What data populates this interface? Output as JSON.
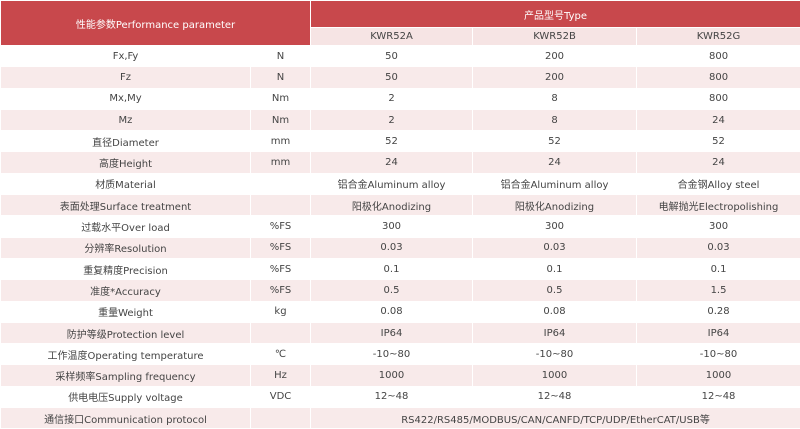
{
  "header": {
    "parameter": "性能参数Performance parameter",
    "type": "产品型号Type",
    "models": [
      "KWR52A",
      "KWR52B",
      "KWR52G"
    ]
  },
  "table": {
    "rows": [
      {
        "label": "Fx,Fy",
        "unit": "N",
        "values": [
          "50",
          "200",
          "800"
        ]
      },
      {
        "label": "Fz",
        "unit": "N",
        "values": [
          "50",
          "200",
          "800"
        ]
      },
      {
        "label": "Mx,My",
        "unit": "Nm",
        "values": [
          "2",
          "8",
          "800"
        ]
      },
      {
        "label": "Mz",
        "unit": "Nm",
        "values": [
          "2",
          "8",
          "24"
        ]
      },
      {
        "label": "直径Diameter",
        "unit": "mm",
        "values": [
          "52",
          "52",
          "52"
        ]
      },
      {
        "label": "高度Height",
        "unit": "mm",
        "values": [
          "24",
          "24",
          "24"
        ]
      },
      {
        "label": "材质Material",
        "values": [
          "铝合金Aluminum alloy",
          "铝合金Aluminum alloy",
          "合金钢Alloy steel"
        ]
      },
      {
        "label": "表面处理Surface treatment",
        "values": [
          "阳极化Anodizing",
          "阳极化Anodizing",
          "电解抛光Electropolishing"
        ]
      },
      {
        "label": "过载水平Over load",
        "unit": "%FS",
        "values": [
          "300",
          "300",
          "300"
        ]
      },
      {
        "label": "分辨率Resolution",
        "unit": "%FS",
        "values": [
          "0.03",
          "0.03",
          "0.03"
        ]
      },
      {
        "label": "重复精度Precision",
        "unit": "%FS",
        "values": [
          "0.1",
          "0.1",
          "0.1"
        ]
      },
      {
        "label": "准度*Accuracy",
        "unit": "%FS",
        "values": [
          "0.5",
          "0.5",
          "1.5"
        ]
      },
      {
        "label": "重量Weight",
        "unit": "kg",
        "values": [
          "0.08",
          "0.08",
          "0.28"
        ]
      },
      {
        "label": "防护等级Protection level",
        "values": [
          "IP64",
          "IP64",
          "IP64"
        ]
      },
      {
        "label": "工作温度Operating temperature",
        "unit": "℃",
        "values": [
          "-10~80",
          "-10~80",
          "-10~80"
        ]
      },
      {
        "label": "采样频率Sampling frequency",
        "unit": "Hz",
        "values": [
          "1000",
          "1000",
          "1000"
        ]
      },
      {
        "label": "供电电压Supply voltage",
        "unit": "VDC",
        "values": [
          "12~48",
          "12~48",
          "12~48"
        ]
      },
      {
        "label": "通信接口Communication protocol",
        "values": [
          "RS422/RS485/MODBUS/CAN/CANFD/TCP/UDP/EtherCAT/USB等"
        ]
      }
    ]
  }
}
